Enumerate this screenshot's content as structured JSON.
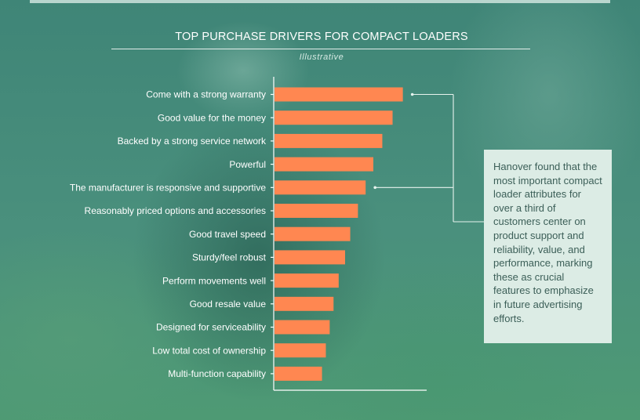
{
  "chart_data": {
    "type": "bar",
    "orientation": "horizontal",
    "title": "TOP PURCHASE DRIVERS FOR COMPACT LOADERS",
    "subtitle": "Illustrative",
    "categories": [
      "Come with a strong warranty",
      "Good value for the money",
      "Backed by a strong service network",
      "Powerful",
      "The manufacturer is responsive and supportive",
      "Reasonably priced options and accessories",
      "Good travel speed",
      "Sturdy/feel robust",
      "Perform movements well",
      "Good resale value",
      "Designed for serviceability",
      "Low total cost of ownership",
      "Multi-function capability"
    ],
    "values": [
      100,
      92,
      84,
      77,
      71,
      65,
      59,
      55,
      50,
      46,
      43,
      40,
      37
    ],
    "xlim": [
      0,
      110
    ],
    "grid": false,
    "legend": "none",
    "bar_color": "#ff8751",
    "axis_color": "#ffffff",
    "highlighted_categories": [
      "Come with a strong warranty",
      "The manufacturer is responsive and supportive"
    ]
  },
  "callout": {
    "text": "Hanover found that the most important compact loader attributes for over a third of customers center on product support and reliability, value, and performance, marking these as crucial features to emphasize in future advertising efforts.",
    "background": "#dcece5",
    "text_color": "#3c5f58"
  }
}
